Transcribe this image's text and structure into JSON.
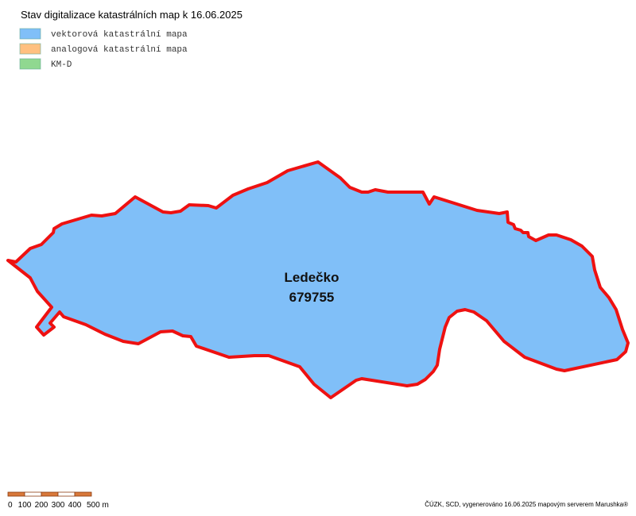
{
  "header": {
    "title": "Stav digitalizace katastrálních map k 16.06.2025"
  },
  "legend": {
    "items": [
      {
        "label": "vektorová katastrální mapa",
        "color": "#80bff8"
      },
      {
        "label": "analogová katastrální mapa",
        "color": "#ffc080"
      },
      {
        "label": "KM-D",
        "color": "#90d890"
      }
    ]
  },
  "region": {
    "name": "Ledečko",
    "code": "679755"
  },
  "scale_bar": {
    "labels": [
      "0",
      "100",
      "200",
      "300",
      "400",
      "500 m"
    ]
  },
  "footer": {
    "credit": "ČÚZK, SCD, vygenerováno 16.06.2025 mapovým serverem Marushka®"
  }
}
